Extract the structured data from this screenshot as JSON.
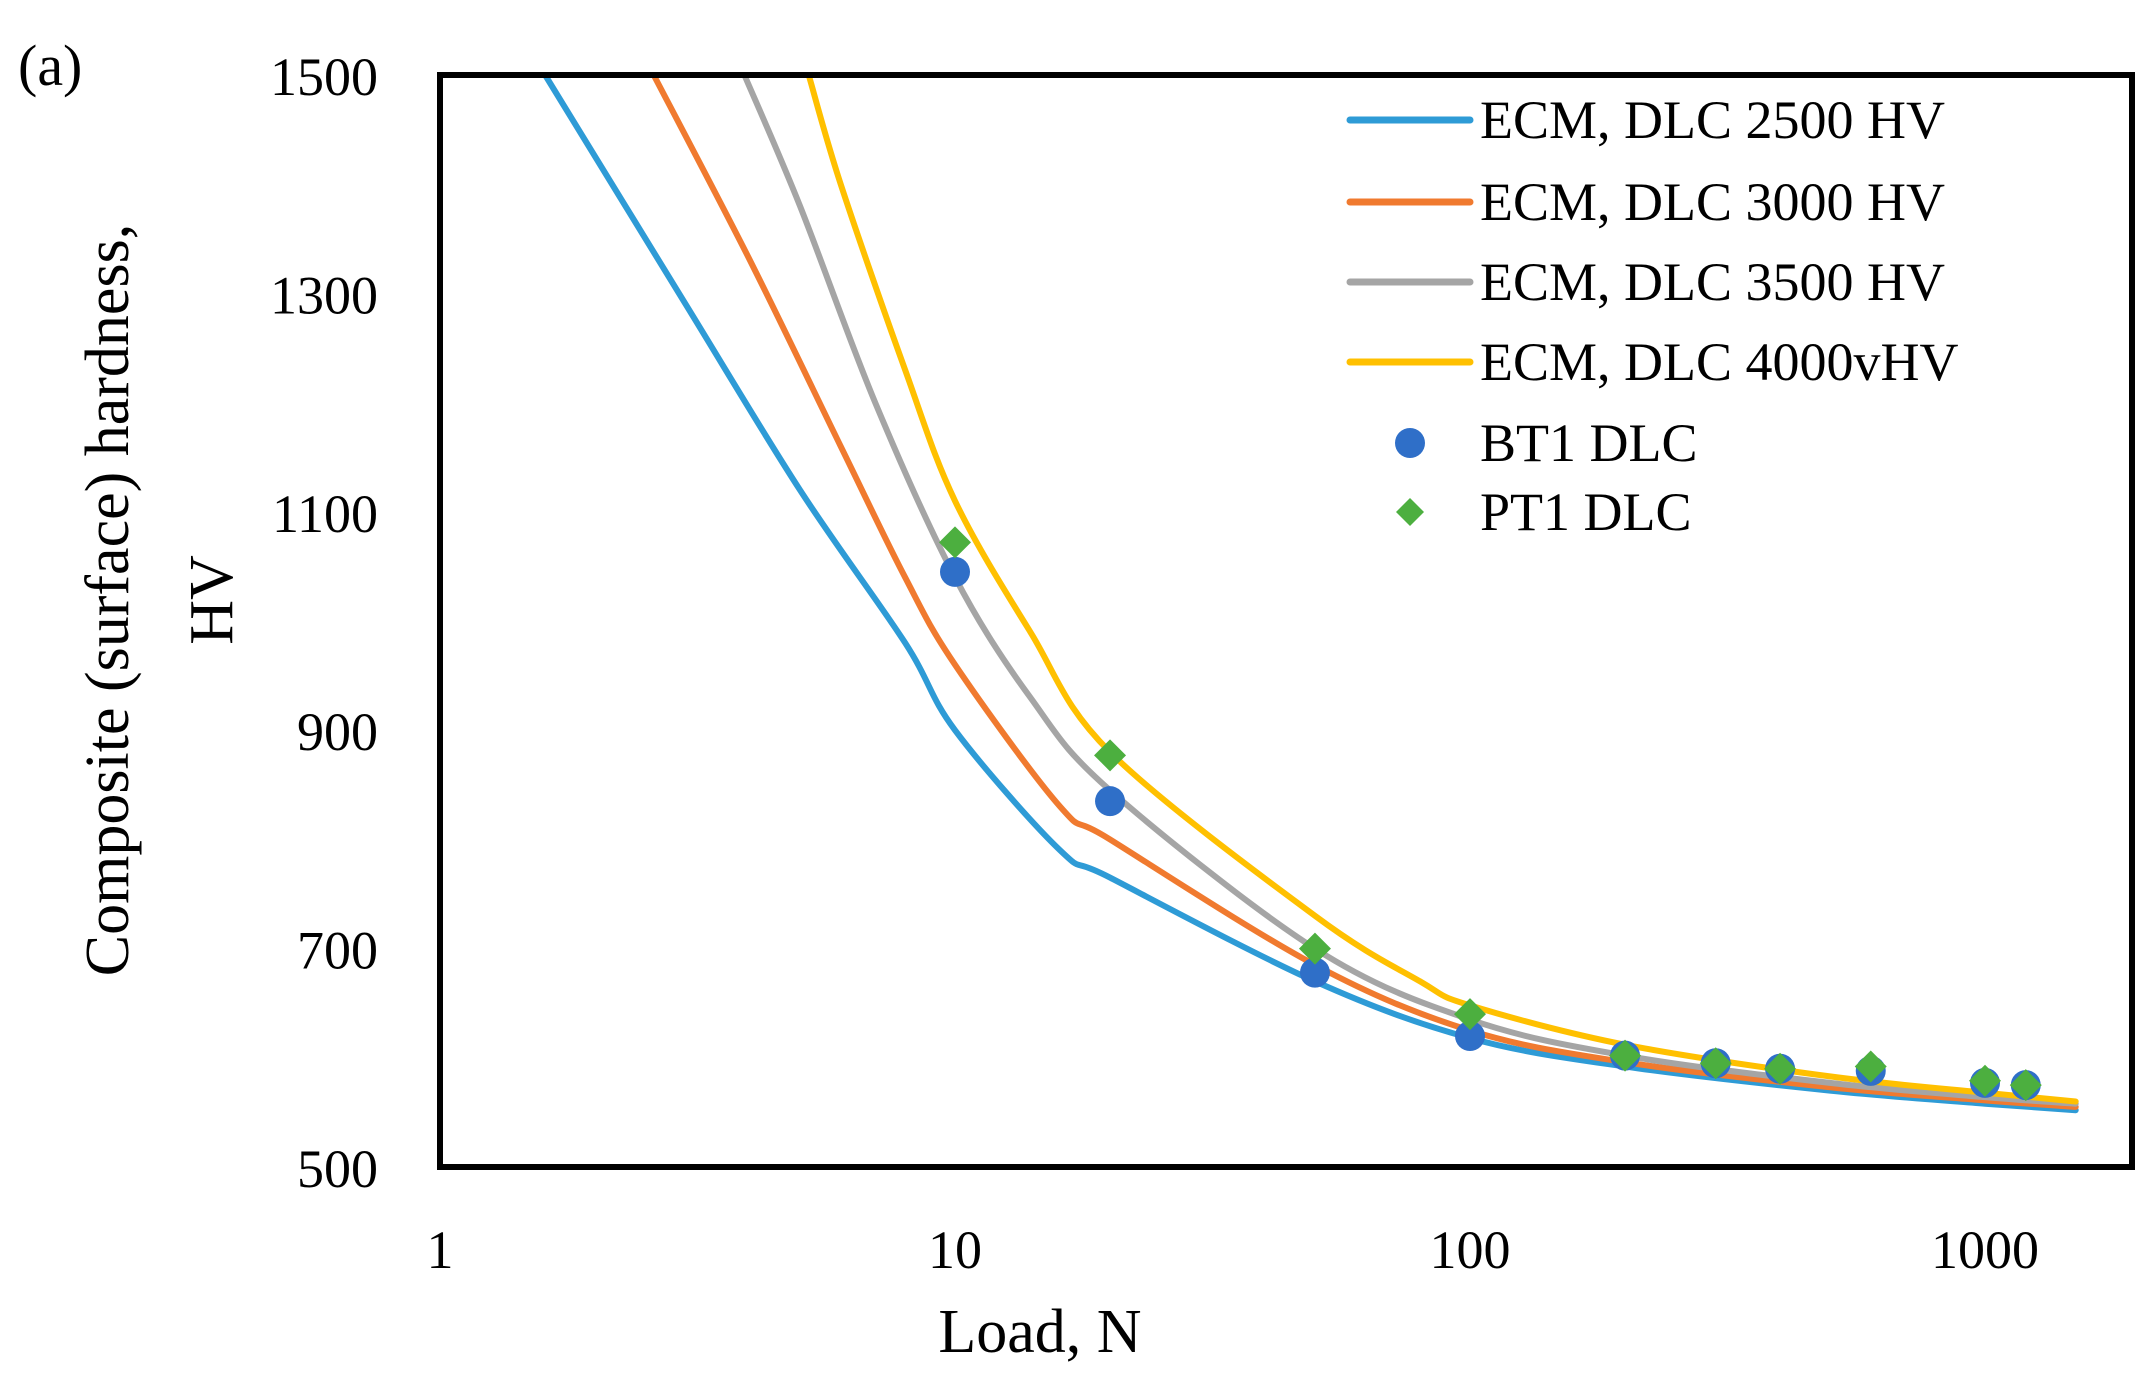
{
  "panel_label": "(a)",
  "chart_data": {
    "type": "line",
    "title": "",
    "xlabel": "Load, N",
    "ylabel_line1": "Composite (surface) hardness,",
    "ylabel_line2": "HV",
    "xscale": "log",
    "xlim": [
      1,
      2000
    ],
    "ylim": [
      500,
      1500
    ],
    "x_ticks": [
      1,
      10,
      100,
      1000
    ],
    "x_tick_labels": [
      "1",
      "10",
      "100",
      "1000"
    ],
    "y_ticks": [
      500,
      700,
      900,
      1100,
      1300,
      1500
    ],
    "y_tick_labels": [
      "500",
      "700",
      "900",
      "1100",
      "1300",
      "1500"
    ],
    "grid": false,
    "legend_position": "top-right",
    "series": [
      {
        "name": "ECM, DLC 2500 HV",
        "kind": "line",
        "color": "#2E9BD6",
        "x": [
          1.6,
          3,
          5,
          8,
          10,
          16,
          20,
          50,
          100,
          200,
          500,
          1000,
          1500
        ],
        "y": [
          1500,
          1290,
          1120,
          980,
          900,
          790,
          765,
          670,
          618,
          592,
          570,
          558,
          552
        ]
      },
      {
        "name": "ECM, DLC 3000 HV",
        "kind": "line",
        "color": "#F07A2F",
        "x": [
          2.6,
          4,
          6,
          8,
          10,
          16,
          20,
          50,
          100,
          200,
          500,
          1000,
          1500
        ],
        "y": [
          1500,
          1330,
          1160,
          1040,
          960,
          830,
          800,
          685,
          625,
          596,
          573,
          561,
          555
        ]
      },
      {
        "name": "ECM, DLC 3500 HV",
        "kind": "line",
        "color": "#A5A5A5",
        "x": [
          3.9,
          5,
          7,
          10,
          14,
          20,
          50,
          100,
          200,
          500,
          1000,
          1500
        ],
        "y": [
          1500,
          1380,
          1200,
          1040,
          930,
          845,
          700,
          635,
          602,
          577,
          564,
          558
        ]
      },
      {
        "name": "ECM,  DLC 4000vHV",
        "kind": "line",
        "color": "#FFC000",
        "x": [
          5.2,
          6,
          8,
          10,
          14,
          20,
          50,
          80,
          100,
          200,
          500,
          1000,
          1500
        ],
        "y": [
          1500,
          1400,
          1230,
          1110,
          990,
          880,
          730,
          670,
          648,
          612,
          583,
          568,
          560
        ]
      },
      {
        "name": "BT1 DLC",
        "kind": "scatter",
        "marker": "circle",
        "color": "#2F6FC8",
        "x": [
          10,
          20,
          50,
          100,
          200,
          300,
          400,
          600,
          1000,
          1200
        ],
        "y": [
          1045,
          835,
          678,
          620,
          602,
          595,
          590,
          588,
          577,
          575
        ]
      },
      {
        "name": "PT1 DLC",
        "kind": "scatter",
        "marker": "diamond",
        "color": "#4CAF3F",
        "x": [
          10,
          20,
          50,
          100,
          200,
          300,
          400,
          600,
          1000,
          1200
        ],
        "y": [
          1072,
          877,
          700,
          640,
          602,
          595,
          590,
          592,
          579,
          575
        ]
      }
    ]
  }
}
